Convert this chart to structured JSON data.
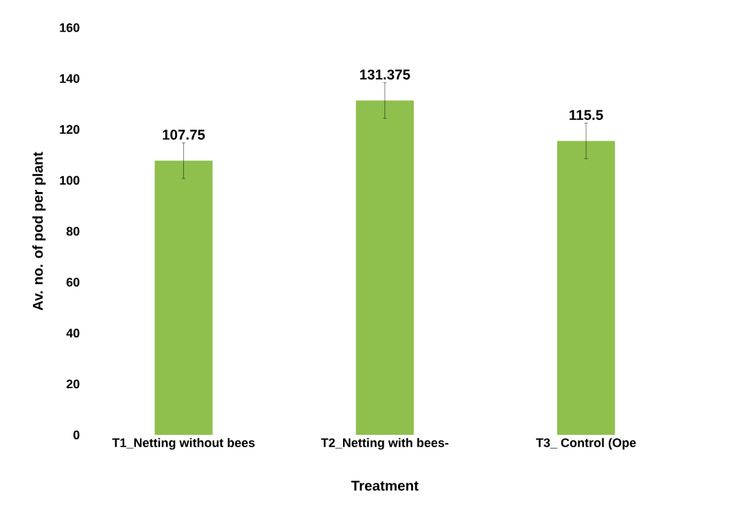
{
  "chart_data": {
    "type": "bar",
    "xlabel": "Treatment",
    "ylabel": "Av. no. of pod per plant",
    "categories": [
      "T1_Netting without bees",
      "T2_Netting with bees-",
      "T3_ Control (Ope"
    ],
    "values": [
      107.75,
      131.375,
      115.5
    ],
    "errors": [
      7,
      7,
      7
    ],
    "color": "#8fbf4d",
    "ylim": [
      0,
      160
    ],
    "yticks": [
      0,
      20,
      40,
      60,
      80,
      100,
      120,
      140,
      160
    ],
    "data_labels": true,
    "grid": false
  }
}
